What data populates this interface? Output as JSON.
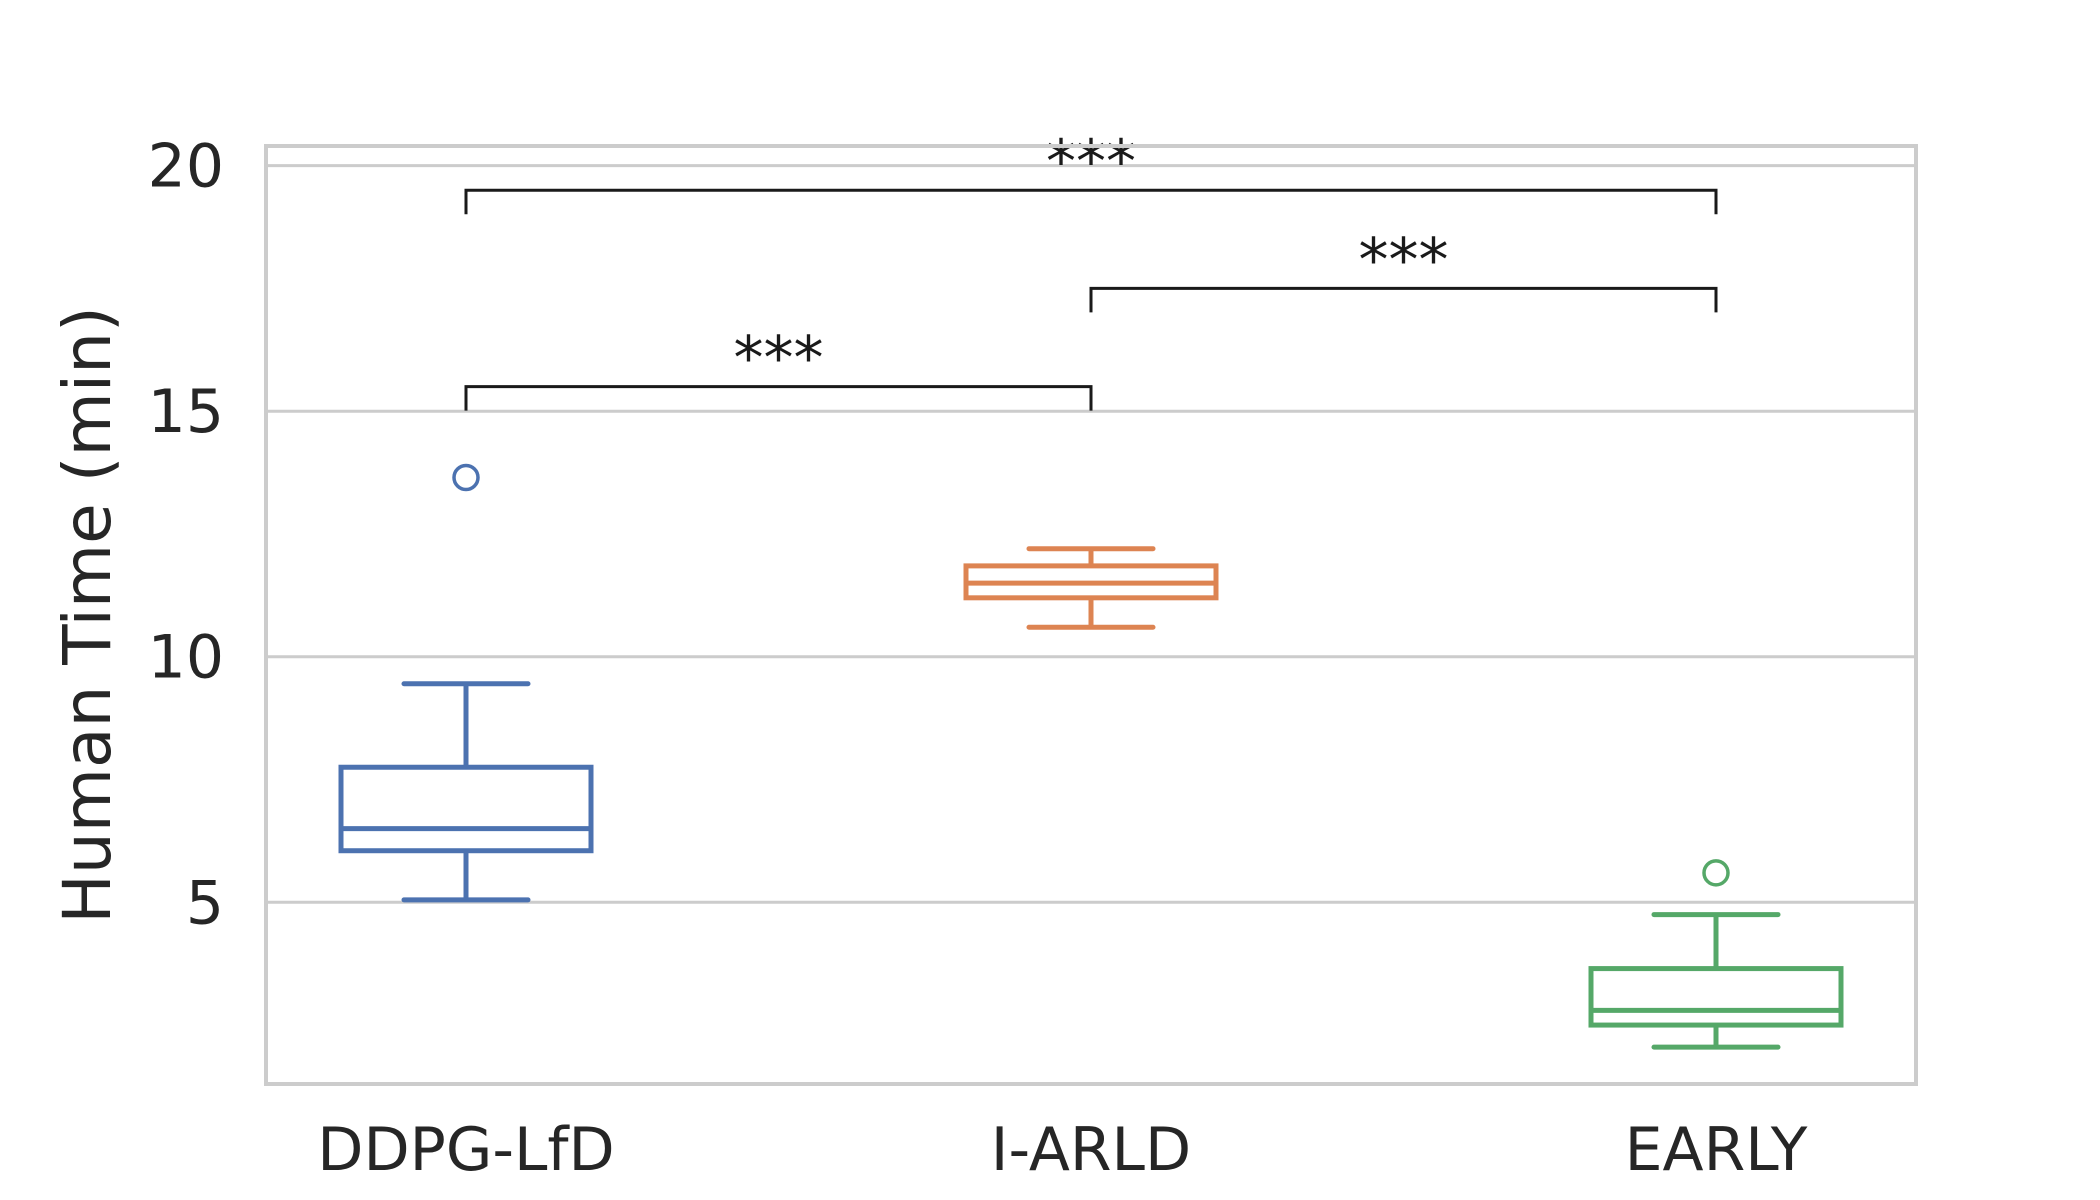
{
  "chart_data": {
    "type": "box",
    "ylabel": "Human Time (min)",
    "xlabel": "",
    "title": "",
    "categories": [
      "DDPG-LfD",
      "I-ARLD",
      "EARLY"
    ],
    "ylim": [
      1.3,
      20.4
    ],
    "yticks": [
      5,
      10,
      15,
      20
    ],
    "grid": true,
    "boxes": [
      {
        "category": "DDPG-LfD",
        "whisker_low": 5.05,
        "q1": 6.05,
        "median": 6.5,
        "q3": 7.75,
        "whisker_high": 9.45,
        "outliers": [
          13.65
        ],
        "color": "#4c72b0"
      },
      {
        "category": "I-ARLD",
        "whisker_low": 10.6,
        "q1": 11.2,
        "median": 11.5,
        "q3": 11.85,
        "whisker_high": 12.2,
        "outliers": [],
        "color": "#dd8452"
      },
      {
        "category": "EARLY",
        "whisker_low": 2.05,
        "q1": 2.5,
        "median": 2.8,
        "q3": 3.65,
        "whisker_high": 4.75,
        "outliers": [
          5.6
        ],
        "color": "#55a868"
      }
    ],
    "significance": [
      {
        "from": "DDPG-LfD",
        "to": "I-ARLD",
        "label": "***",
        "y": 15.5
      },
      {
        "from": "I-ARLD",
        "to": "EARLY",
        "label": "***",
        "y": 17.5
      },
      {
        "from": "DDPG-LfD",
        "to": "EARLY",
        "label": "***",
        "y": 19.5
      }
    ]
  }
}
